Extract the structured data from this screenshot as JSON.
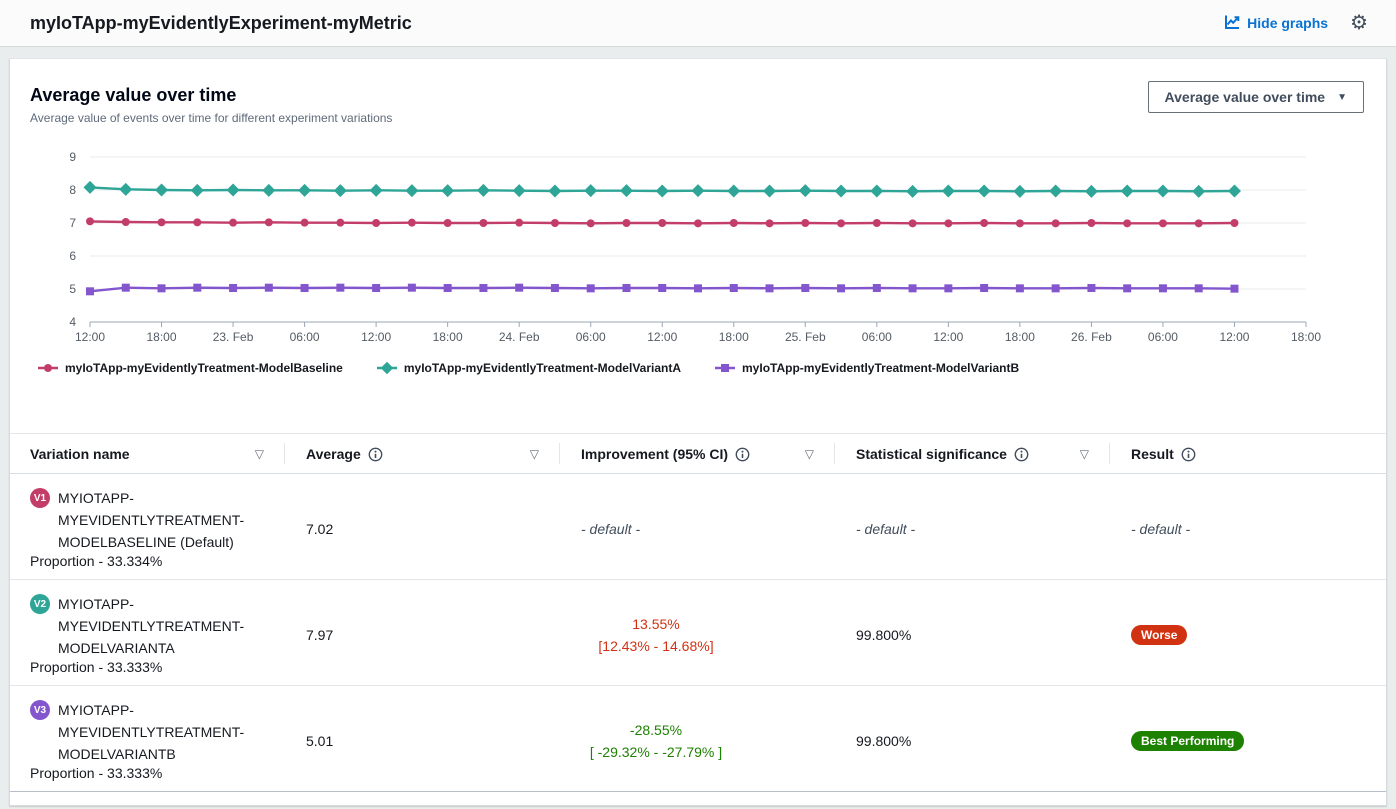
{
  "header": {
    "title": "myIoTApp-myEvidentlyExperiment-myMetric",
    "hide_graphs_label": "Hide graphs",
    "icons": {
      "hide_graphs_icon": "line-chart",
      "settings_icon": "gear"
    }
  },
  "chart_header": {
    "title": "Average value over time",
    "description": "Average value of events over time for different experiment variations",
    "dropdown_label": "Average value over time",
    "dropdown_caret": "▼"
  },
  "chart_data": {
    "type": "line",
    "title": "Average value over time",
    "ylim": [
      4,
      9
    ],
    "yticks": [
      4,
      5,
      6,
      7,
      8,
      9
    ],
    "grid": true,
    "legend_position": "bottom",
    "xtick_labels": [
      "12:00",
      "18:00",
      "23. Feb",
      "06:00",
      "12:00",
      "18:00",
      "24. Feb",
      "06:00",
      "12:00",
      "18:00",
      "25. Feb",
      "06:00",
      "12:00",
      "18:00",
      "26. Feb",
      "06:00",
      "12:00",
      "18:00"
    ],
    "tick_interval_hours": 6,
    "x_hours": [
      0,
      3,
      6,
      9,
      12,
      15,
      18,
      21,
      24,
      27,
      30,
      33,
      36,
      39,
      42,
      45,
      48,
      51,
      54,
      57,
      60,
      63,
      66,
      69,
      72,
      75,
      78,
      81,
      84,
      87,
      90,
      93,
      96
    ],
    "series": [
      {
        "name": "myIoTApp-myEvidentlyTreatment-ModelBaseline",
        "color": "#c33d69",
        "marker": "circle",
        "values": [
          7.05,
          7.03,
          7.02,
          7.02,
          7.01,
          7.02,
          7.01,
          7.01,
          7.0,
          7.01,
          7.0,
          7.0,
          7.01,
          7.0,
          6.99,
          7.0,
          7.0,
          6.99,
          7.0,
          6.99,
          7.0,
          6.99,
          7.0,
          6.99,
          6.99,
          7.0,
          6.99,
          6.99,
          7.0,
          6.99,
          6.99,
          6.99,
          7.0
        ]
      },
      {
        "name": "myIoTApp-myEvidentlyTreatment-ModelVariantA",
        "color": "#2ea597",
        "marker": "diamond",
        "values": [
          8.08,
          8.02,
          8.0,
          7.99,
          8.0,
          7.99,
          7.99,
          7.98,
          7.99,
          7.98,
          7.98,
          7.99,
          7.98,
          7.97,
          7.98,
          7.98,
          7.97,
          7.98,
          7.97,
          7.97,
          7.98,
          7.97,
          7.97,
          7.96,
          7.97,
          7.97,
          7.96,
          7.97,
          7.96,
          7.97,
          7.97,
          7.96,
          7.97
        ]
      },
      {
        "name": "myIoTApp-myEvidentlyTreatment-ModelVariantB",
        "color": "#8456ce",
        "marker": "square",
        "values": [
          4.93,
          5.04,
          5.02,
          5.04,
          5.03,
          5.04,
          5.03,
          5.04,
          5.03,
          5.04,
          5.03,
          5.03,
          5.04,
          5.03,
          5.02,
          5.03,
          5.03,
          5.02,
          5.03,
          5.02,
          5.03,
          5.02,
          5.03,
          5.02,
          5.02,
          5.03,
          5.02,
          5.02,
          5.03,
          5.02,
          5.02,
          5.02,
          5.01
        ]
      }
    ]
  },
  "table": {
    "columns": [
      {
        "label": "Variation name",
        "info": false,
        "sortable": true
      },
      {
        "label": "Average",
        "info": true,
        "sortable": true
      },
      {
        "label": "Improvement (95% CI)",
        "info": true,
        "sortable": true
      },
      {
        "label": "Statistical significance",
        "info": true,
        "sortable": true
      },
      {
        "label": "Result",
        "info": true,
        "sortable": false
      }
    ],
    "sort_icon": "▽",
    "rows": [
      {
        "badge": "V1",
        "badge_color": "#c33d69",
        "name_lines": [
          "MYIOTAPP-",
          "MYEVIDENTLYTREATMENT-",
          "MODELBASELINE (Default)"
        ],
        "proportion": "Proportion - 33.334%",
        "average": "7.02",
        "improvement": {
          "type": "default",
          "text": "- default -"
        },
        "significance": {
          "type": "default",
          "text": "- default -"
        },
        "result": {
          "type": "default",
          "text": "- default -"
        }
      },
      {
        "badge": "V2",
        "badge_color": "#2ea597",
        "name_lines": [
          "MYIOTAPP-",
          "MYEVIDENTLYTREATMENT-",
          "MODELVARIANTA"
        ],
        "proportion": "Proportion - 33.333%",
        "average": "7.97",
        "improvement": {
          "type": "value",
          "color": "#d13212",
          "line1": "13.55%",
          "line2": "[12.43% - 14.68%]"
        },
        "significance": {
          "type": "value",
          "text": "99.800%"
        },
        "result": {
          "type": "badge",
          "text": "Worse",
          "color": "#d13212"
        }
      },
      {
        "badge": "V3",
        "badge_color": "#8456ce",
        "name_lines": [
          "MYIOTAPP-",
          "MYEVIDENTLYTREATMENT-",
          "MODELVARIANTB"
        ],
        "proportion": "Proportion - 33.333%",
        "average": "5.01",
        "improvement": {
          "type": "value",
          "color": "#1d8102",
          "line1": "-28.55%",
          "line2": "[ -29.32% - -27.79% ]"
        },
        "significance": {
          "type": "value",
          "text": "99.800%"
        },
        "result": {
          "type": "badge",
          "text": "Best Performing",
          "color": "#1d8102"
        }
      }
    ]
  }
}
